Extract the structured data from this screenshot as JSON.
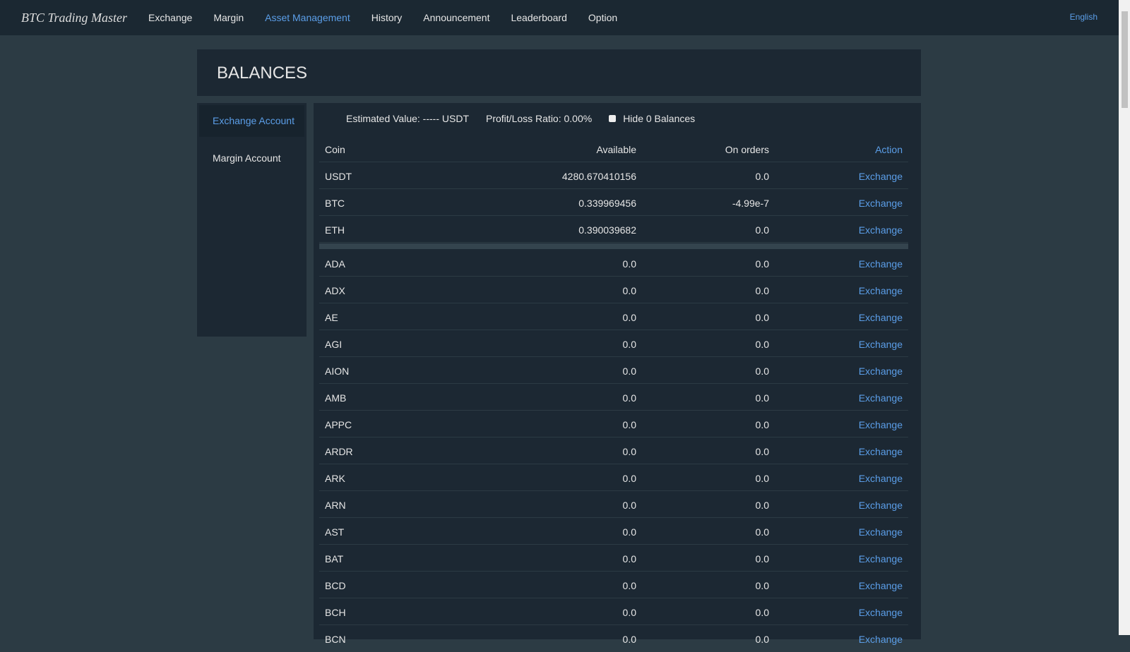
{
  "nav": {
    "logo": "BTC Trading Master",
    "items": [
      "Exchange",
      "Margin",
      "Asset Management",
      "History",
      "Announcement",
      "Leaderboard",
      "Option"
    ],
    "language": "English"
  },
  "page": {
    "title": "BALANCES"
  },
  "sidebar": {
    "items": [
      "Exchange Account",
      "Margin Account"
    ]
  },
  "summary": {
    "estimated_value": "Estimated Value: ----- USDT",
    "profit_loss": "Profit/Loss Ratio: 0.00%",
    "hide_zero": "Hide 0 Balances"
  },
  "table": {
    "headers": [
      "Coin",
      "Available",
      "On orders",
      "Action"
    ],
    "groups": [
      [
        [
          "USDT",
          "4280.670410156",
          "0.0",
          "Exchange"
        ],
        [
          "BTC",
          "0.339969456",
          "-4.99e-7",
          "Exchange"
        ],
        [
          "ETH",
          "0.390039682",
          "0.0",
          "Exchange"
        ]
      ],
      [
        [
          "ADA",
          "0.0",
          "0.0",
          "Exchange"
        ],
        [
          "ADX",
          "0.0",
          "0.0",
          "Exchange"
        ],
        [
          "AE",
          "0.0",
          "0.0",
          "Exchange"
        ],
        [
          "AGI",
          "0.0",
          "0.0",
          "Exchange"
        ],
        [
          "AION",
          "0.0",
          "0.0",
          "Exchange"
        ],
        [
          "AMB",
          "0.0",
          "0.0",
          "Exchange"
        ],
        [
          "APPC",
          "0.0",
          "0.0",
          "Exchange"
        ],
        [
          "ARDR",
          "0.0",
          "0.0",
          "Exchange"
        ],
        [
          "ARK",
          "0.0",
          "0.0",
          "Exchange"
        ],
        [
          "ARN",
          "0.0",
          "0.0",
          "Exchange"
        ],
        [
          "AST",
          "0.0",
          "0.0",
          "Exchange"
        ],
        [
          "BAT",
          "0.0",
          "0.0",
          "Exchange"
        ],
        [
          "BCD",
          "0.0",
          "0.0",
          "Exchange"
        ],
        [
          "BCH",
          "0.0",
          "0.0",
          "Exchange"
        ],
        [
          "BCN",
          "0.0",
          "0.0",
          "Exchange"
        ]
      ]
    ]
  }
}
